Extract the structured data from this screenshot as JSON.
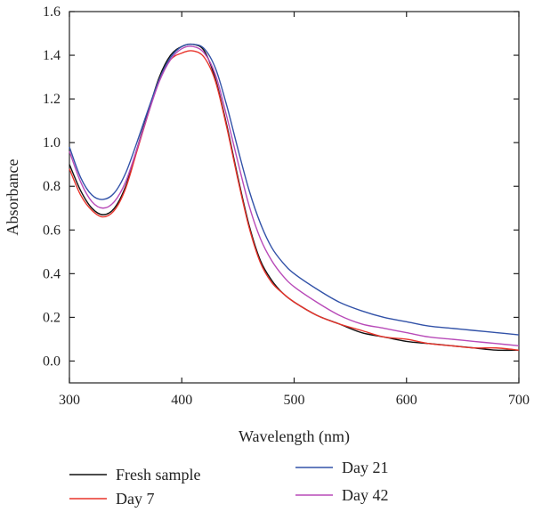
{
  "chart_data": {
    "type": "line",
    "xlabel": "Wavelength (nm)",
    "ylabel": "Absorbance",
    "xlim": [
      300,
      700
    ],
    "ylim": [
      -0.1,
      1.6
    ],
    "xticks": [
      300,
      400,
      500,
      600,
      700
    ],
    "yticks": [
      0.0,
      0.2,
      0.4,
      0.6,
      0.8,
      1.0,
      1.2,
      1.4,
      1.6
    ],
    "xtick_labels": [
      "300",
      "400",
      "500",
      "600",
      "700"
    ],
    "ytick_labels": [
      "0.0",
      "0.2",
      "0.4",
      "0.6",
      "0.8",
      "1.0",
      "1.2",
      "1.4",
      "1.6"
    ],
    "grid": false,
    "legend_position": "bottom",
    "x": [
      300,
      310,
      320,
      330,
      340,
      350,
      360,
      370,
      380,
      390,
      400,
      410,
      420,
      430,
      440,
      450,
      460,
      470,
      480,
      490,
      500,
      520,
      540,
      560,
      580,
      600,
      620,
      640,
      660,
      680,
      700
    ],
    "series": [
      {
        "name": "Fresh sample",
        "color": "#111111",
        "values": [
          0.9,
          0.78,
          0.7,
          0.67,
          0.7,
          0.8,
          0.97,
          1.14,
          1.3,
          1.4,
          1.44,
          1.45,
          1.42,
          1.29,
          1.08,
          0.84,
          0.62,
          0.46,
          0.37,
          0.31,
          0.27,
          0.21,
          0.17,
          0.13,
          0.11,
          0.09,
          0.08,
          0.07,
          0.06,
          0.05,
          0.05
        ]
      },
      {
        "name": "Day 7",
        "color": "#e8332a",
        "values": [
          0.88,
          0.76,
          0.69,
          0.66,
          0.69,
          0.79,
          0.96,
          1.13,
          1.29,
          1.38,
          1.41,
          1.42,
          1.39,
          1.28,
          1.07,
          0.83,
          0.61,
          0.45,
          0.36,
          0.31,
          0.27,
          0.21,
          0.17,
          0.14,
          0.11,
          0.1,
          0.08,
          0.07,
          0.06,
          0.06,
          0.05
        ]
      },
      {
        "name": "Day 21",
        "color": "#3252a8",
        "values": [
          0.98,
          0.84,
          0.76,
          0.74,
          0.77,
          0.86,
          1.0,
          1.15,
          1.29,
          1.39,
          1.44,
          1.45,
          1.43,
          1.34,
          1.17,
          0.97,
          0.78,
          0.63,
          0.52,
          0.45,
          0.4,
          0.33,
          0.27,
          0.23,
          0.2,
          0.18,
          0.16,
          0.15,
          0.14,
          0.13,
          0.12
        ]
      },
      {
        "name": "Day 42",
        "color": "#b84ab8",
        "values": [
          0.96,
          0.82,
          0.73,
          0.7,
          0.73,
          0.82,
          0.97,
          1.13,
          1.28,
          1.38,
          1.43,
          1.44,
          1.41,
          1.31,
          1.12,
          0.91,
          0.71,
          0.56,
          0.46,
          0.39,
          0.34,
          0.27,
          0.21,
          0.17,
          0.15,
          0.13,
          0.11,
          0.1,
          0.09,
          0.08,
          0.07
        ]
      }
    ]
  }
}
